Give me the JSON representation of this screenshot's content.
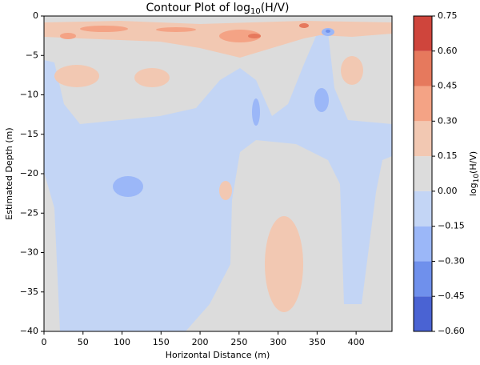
{
  "chart_data": {
    "type": "contour",
    "title": [
      "Contour Plot of log",
      "10",
      "(H/V)"
    ],
    "x_label": "Horizontal Distance (m)",
    "y_label": "Estimated Depth (m)",
    "xlim": [
      0,
      446
    ],
    "xticks": [
      0,
      50,
      100,
      150,
      200,
      250,
      300,
      350,
      400
    ],
    "ylim": [
      -40,
      0
    ],
    "yticks": [
      {
        "value": -40,
        "label": "−40"
      },
      {
        "value": -35,
        "label": "−35"
      },
      {
        "value": -30,
        "label": "−30"
      },
      {
        "value": -25,
        "label": "−25"
      },
      {
        "value": -20,
        "label": "−20"
      },
      {
        "value": -15,
        "label": "−15"
      },
      {
        "value": -10,
        "label": "−10"
      },
      {
        "value": -5,
        "label": "−5"
      },
      0
    ],
    "colorbar": {
      "label": [
        "log",
        "10",
        "(H/V)"
      ],
      "clim": [
        -0.6,
        0.75
      ],
      "ticks": [
        {
          "value": -0.6,
          "label": "−0.60"
        },
        {
          "value": -0.45,
          "label": "−0.45"
        },
        {
          "value": -0.3,
          "label": "−0.30"
        },
        {
          "value": -0.15,
          "label": "−0.15"
        },
        {
          "value": 0,
          "label": "0.00"
        },
        0.15,
        {
          "value": 0.3,
          "label": "0.30"
        },
        0.45,
        {
          "value": 0.6,
          "label": "0.60"
        },
        0.75
      ],
      "colors": [
        "#4a63d3",
        "#6f90ec",
        "#9bb7f8",
        "#c3d5f5",
        "#dcdcdc",
        "#f2c8b2",
        "#f4a385",
        "#e6795d",
        "#cf453c"
      ]
    }
  }
}
